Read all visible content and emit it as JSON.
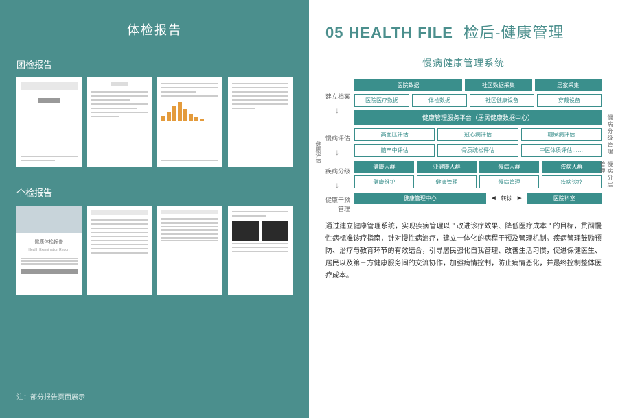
{
  "left": {
    "title": "体检报告",
    "section1_label": "团检报告",
    "section2_label": "个检报告",
    "footnote": "注：部分报告页面展示",
    "thumb_set1": [
      "cover",
      "text",
      "chart",
      "text"
    ],
    "thumb_set2": [
      "photo",
      "form",
      "grid",
      "ultrasound"
    ],
    "chart_bars": [
      8,
      14,
      22,
      28,
      18,
      10,
      6,
      4
    ],
    "report_title": "健康体检报告",
    "report_title_en": "Health Examination Report"
  },
  "right": {
    "title_num": "05",
    "title_en": "HEALTH FILE",
    "title_zh": "检后-健康管理",
    "subtitle": "慢病健康管理系统",
    "colors": {
      "teal": "#3a8f8c",
      "teal_panel": "#4b8f8d",
      "text": "#333"
    },
    "row_labels": [
      "建立档案",
      "慢病评估",
      "疾病分级",
      "健康干预管理"
    ],
    "v_left": "健康评估",
    "side_right1": "慢病分级管理",
    "side_right2": "慢病分层管理",
    "sources": {
      "col1": {
        "hdr": "医院数据",
        "items": [
          "医院医疗数据",
          "体检数据"
        ]
      },
      "col2": {
        "hdr": "社区数据采集",
        "items": [
          "社区健康设备"
        ]
      },
      "col3": {
        "hdr": "居家采集",
        "items": [
          "穿戴设备"
        ]
      }
    },
    "platform": "健康管理服务平台（居民健康数据中心）",
    "assess_row1": [
      "高血压评估",
      "冠心病评估",
      "糖尿病评估"
    ],
    "assess_row2": [
      "脑卒中评估",
      "骨质疏松评估",
      "中医体质评估……"
    ],
    "grade_hdr": [
      "健康人群",
      "亚健康人群",
      "慢病人群",
      "疾病人群"
    ],
    "grade_sub": [
      "健康维护",
      "健康管理",
      "慢病管理",
      "疾病诊疗"
    ],
    "intervene": {
      "left": "健康管理中心",
      "transfer": "转诊",
      "right": "医院科室"
    },
    "desc": "通过建立健康管理系统，实现疾病管理以 \" 改进诊疗效果、降低医疗成本 \" 的目标，贯彻慢性病标准诊疗指南，针对慢性病治疗，建立一体化的病程干预及管理机制。疾病管理鼓励预防、治疗与教育环节的有效结合，引导居民强化自我管理、改善生活习惯，促进保健医生、居民以及第三方健康服务间的交流协作，加强病情控制，防止病情恶化，并最终控制整体医疗成本。"
  }
}
